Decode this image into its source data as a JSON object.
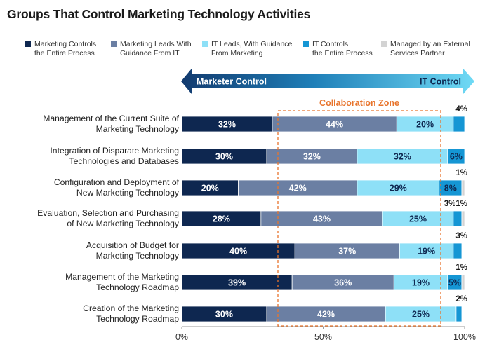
{
  "chart_data": {
    "type": "bar",
    "title": "Groups That Control Marketing Technology Activities",
    "stacked": true,
    "orientation": "horizontal",
    "xlim": [
      0,
      100
    ],
    "x_ticks": [
      "0%",
      "50%",
      "100%"
    ],
    "arrow": {
      "left_label": "Marketer Control",
      "right_label": "IT Control"
    },
    "zone_label": "Collaboration Zone",
    "categories": [
      [
        "Management of the Current Suite of",
        "Marketing Technology"
      ],
      [
        "Integration of Disparate Marketing",
        "Technologies and Databases"
      ],
      [
        "Configuration and Deployment of",
        "New Marketing Technology"
      ],
      [
        "Evaluation, Selection and Purchasing",
        "of New Marketing Technology"
      ],
      [
        "Acquisition of Budget for",
        "Marketing Technology"
      ],
      [
        "Management of the Marketing",
        "Technology Roadmap"
      ],
      [
        "Creation of the Marketing",
        "Technology Roadmap"
      ]
    ],
    "series": [
      {
        "name": "Marketing Controls\nthe Entire Process",
        "color": "#0e2750",
        "label_color": "#ffffff",
        "values": [
          32,
          30,
          20,
          28,
          40,
          39,
          30
        ]
      },
      {
        "name": "Marketing Leads With\nGuidance From IT",
        "color": "#6b7fa3",
        "label_color": "#ffffff",
        "values": [
          44,
          32,
          42,
          43,
          37,
          36,
          42
        ]
      },
      {
        "name": "IT Leads, With Guidance\nFrom Marketing",
        "color": "#8ee0f7",
        "label_color": "#0e2750",
        "values": [
          20,
          32,
          29,
          25,
          19,
          19,
          25
        ]
      },
      {
        "name": "IT Controls\nthe Entire Process",
        "color": "#1596d4",
        "label_color": "#0e2750",
        "values": [
          4,
          6,
          8,
          3,
          3,
          5,
          2
        ]
      },
      {
        "name": "Managed by an External\nServices Partner",
        "color": "#d3d3d3",
        "label_color": "#0e2750",
        "values": [
          0,
          0,
          1,
          1,
          0,
          1,
          0
        ]
      }
    ],
    "segment_labels": [
      [
        "32%",
        "44%",
        "20%",
        "",
        ""
      ],
      [
        "30%",
        "32%",
        "32%",
        "6%",
        ""
      ],
      [
        "20%",
        "42%",
        "29%",
        "8%",
        ""
      ],
      [
        "28%",
        "43%",
        "25%",
        "",
        ""
      ],
      [
        "40%",
        "37%",
        "19%",
        "",
        ""
      ],
      [
        "39%",
        "36%",
        "19%",
        "5%",
        ""
      ],
      [
        "30%",
        "42%",
        "25%",
        "",
        ""
      ]
    ],
    "outside_labels": [
      "4%",
      "",
      "1%",
      "3%1%",
      "3%",
      "1%",
      "2%"
    ]
  }
}
